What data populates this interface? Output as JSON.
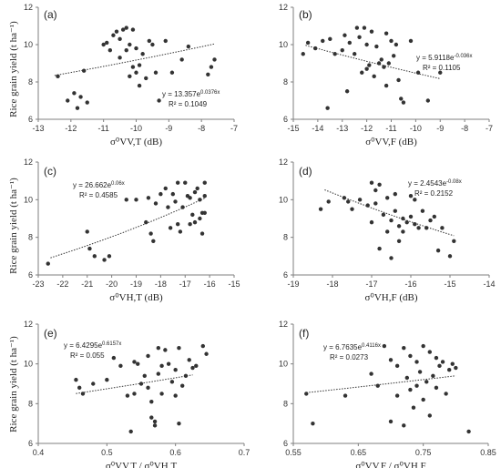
{
  "y_axis_label": "Rice grain yield (t ha⁻¹)",
  "chart_data": [
    {
      "type": "scatter",
      "panel_label": "(a)",
      "xlabel": "σ⁰VV,T (dB)",
      "ylabel": "Rice grain yield (t ha⁻¹)",
      "xlim": [
        -13,
        -7
      ],
      "ylim": [
        6,
        12
      ],
      "xticks": [
        -13,
        -12,
        -11,
        -10,
        -9,
        -8,
        -7
      ],
      "xtick_labels": [
        "-13",
        "-12",
        "-11",
        "-10",
        "-9",
        "-8",
        "-7"
      ],
      "yticks": [
        6,
        8,
        10,
        12
      ],
      "ytick_labels": [
        "6",
        "8",
        "10",
        "12"
      ],
      "equation": "y = 13.357e^0.0376x",
      "equation_parts": {
        "lhs": "y = ",
        "coef": "13.357e",
        "exp": "0.0376x"
      },
      "r2": "R² = 0.1049",
      "fit": {
        "model": "exp",
        "a": 13.357,
        "b": 0.0376,
        "xrange": [
          -12.5,
          -7.6
        ]
      },
      "points": [
        [
          -12.4,
          8.3
        ],
        [
          -12.1,
          7.0
        ],
        [
          -11.9,
          7.4
        ],
        [
          -11.8,
          6.6
        ],
        [
          -11.7,
          7.2
        ],
        [
          -11.6,
          8.6
        ],
        [
          -11.5,
          6.9
        ],
        [
          -11.0,
          10.0
        ],
        [
          -10.9,
          10.1
        ],
        [
          -10.8,
          9.7
        ],
        [
          -10.7,
          10.5
        ],
        [
          -10.6,
          10.7
        ],
        [
          -10.5,
          10.3
        ],
        [
          -10.5,
          9.3
        ],
        [
          -10.4,
          10.8
        ],
        [
          -10.3,
          10.9
        ],
        [
          -10.3,
          9.7
        ],
        [
          -10.2,
          8.3
        ],
        [
          -10.2,
          10.0
        ],
        [
          -10.1,
          10.8
        ],
        [
          -10.1,
          8.8
        ],
        [
          -10.0,
          9.8
        ],
        [
          -10.0,
          8.5
        ],
        [
          -9.9,
          8.9
        ],
        [
          -9.9,
          7.8
        ],
        [
          -9.8,
          9.5
        ],
        [
          -9.7,
          8.2
        ],
        [
          -9.6,
          10.2
        ],
        [
          -9.5,
          10.0
        ],
        [
          -9.4,
          8.5
        ],
        [
          -9.3,
          7.0
        ],
        [
          -9.1,
          10.2
        ],
        [
          -8.9,
          8.5
        ],
        [
          -8.6,
          9.2
        ],
        [
          -8.4,
          9.9
        ],
        [
          -7.8,
          8.4
        ],
        [
          -7.7,
          8.8
        ],
        [
          -7.6,
          9.2
        ]
      ]
    },
    {
      "type": "scatter",
      "panel_label": "(b)",
      "xlabel": "σ⁰VV,F (dB)",
      "ylabel": "",
      "xlim": [
        -15,
        -7
      ],
      "ylim": [
        6,
        12
      ],
      "xticks": [
        -15,
        -14,
        -13,
        -12,
        -11,
        -10,
        -9,
        -8,
        -7
      ],
      "xtick_labels": [
        "-15",
        "-14",
        "-13",
        "-12",
        "-11",
        "-10",
        "-9",
        "-8",
        "-7"
      ],
      "yticks": [
        6,
        8,
        10,
        12
      ],
      "ytick_labels": [
        "6",
        "8",
        "10",
        "12"
      ],
      "equation": "y = 5.9118e^-0.036x",
      "equation_parts": {
        "lhs": "y = ",
        "coef": "5.9118e",
        "exp": "-0.036x"
      },
      "r2": "R² = 0.1105",
      "fit": {
        "model": "exp",
        "a": 5.9118,
        "b": -0.036,
        "xrange": [
          -14.5,
          -9.0
        ]
      },
      "points": [
        [
          -14.6,
          9.5
        ],
        [
          -14.4,
          10.1
        ],
        [
          -14.1,
          9.8
        ],
        [
          -13.8,
          10.2
        ],
        [
          -13.6,
          6.6
        ],
        [
          -13.5,
          10.3
        ],
        [
          -13.3,
          9.5
        ],
        [
          -13.0,
          9.7
        ],
        [
          -12.9,
          10.5
        ],
        [
          -12.8,
          7.5
        ],
        [
          -12.7,
          10.1
        ],
        [
          -12.5,
          9.5
        ],
        [
          -12.4,
          10.9
        ],
        [
          -12.3,
          10.4
        ],
        [
          -12.2,
          8.5
        ],
        [
          -12.1,
          10.9
        ],
        [
          -12.0,
          10.0
        ],
        [
          -12.0,
          8.7
        ],
        [
          -11.9,
          8.9
        ],
        [
          -11.8,
          10.7
        ],
        [
          -11.7,
          8.3
        ],
        [
          -11.6,
          9.9
        ],
        [
          -11.5,
          9.0
        ],
        [
          -11.4,
          9.2
        ],
        [
          -11.3,
          8.8
        ],
        [
          -11.2,
          10.6
        ],
        [
          -11.2,
          7.8
        ],
        [
          -11.1,
          9.0
        ],
        [
          -11.0,
          10.2
        ],
        [
          -10.9,
          9.4
        ],
        [
          -10.8,
          10.0
        ],
        [
          -10.7,
          8.1
        ],
        [
          -10.6,
          7.1
        ],
        [
          -10.5,
          6.9
        ],
        [
          -10.2,
          10.2
        ],
        [
          -9.9,
          8.5
        ],
        [
          -9.5,
          7.0
        ],
        [
          -9.0,
          8.5
        ]
      ]
    },
    {
      "type": "scatter",
      "panel_label": "(c)",
      "xlabel": "σ⁰VH,T (dB)",
      "ylabel": "Rice grain yield (t ha⁻¹)",
      "xlim": [
        -23,
        -15
      ],
      "ylim": [
        6,
        12
      ],
      "xticks": [
        -23,
        -22,
        -21,
        -20,
        -19,
        -18,
        -17,
        -16,
        -15
      ],
      "xtick_labels": [
        "-23",
        "-22",
        "-21",
        "-20",
        "-19",
        "-18",
        "-17",
        "-16",
        "-15"
      ],
      "yticks": [
        6,
        8,
        10,
        12
      ],
      "ytick_labels": [
        "6",
        "8",
        "10",
        "12"
      ],
      "equation": "y = 26.662e^0.06x",
      "equation_parts": {
        "lhs": "y = ",
        "coef": "26.662e",
        "exp": "0.06x"
      },
      "r2": "R² = 0.4585",
      "fit": {
        "model": "exp",
        "a": 26.662,
        "b": 0.06,
        "xrange": [
          -22.5,
          -16.2
        ]
      },
      "points": [
        [
          -22.6,
          6.6
        ],
        [
          -21.0,
          8.3
        ],
        [
          -20.9,
          7.4
        ],
        [
          -20.7,
          7.0
        ],
        [
          -20.3,
          6.8
        ],
        [
          -20.1,
          7.0
        ],
        [
          -19.4,
          10.0
        ],
        [
          -19.0,
          10.0
        ],
        [
          -18.6,
          8.8
        ],
        [
          -18.5,
          10.1
        ],
        [
          -18.4,
          8.2
        ],
        [
          -18.3,
          7.8
        ],
        [
          -18.2,
          9.8
        ],
        [
          -18.0,
          10.3
        ],
        [
          -17.8,
          10.6
        ],
        [
          -17.7,
          9.6
        ],
        [
          -17.6,
          8.5
        ],
        [
          -17.5,
          10.3
        ],
        [
          -17.4,
          9.9
        ],
        [
          -17.3,
          8.7
        ],
        [
          -17.3,
          10.9
        ],
        [
          -17.2,
          8.3
        ],
        [
          -17.1,
          9.6
        ],
        [
          -17.0,
          10.9
        ],
        [
          -16.9,
          10.2
        ],
        [
          -16.8,
          8.7
        ],
        [
          -16.8,
          10.1
        ],
        [
          -16.7,
          9.2
        ],
        [
          -16.6,
          10.4
        ],
        [
          -16.6,
          8.8
        ],
        [
          -16.5,
          10.6
        ],
        [
          -16.4,
          9.0
        ],
        [
          -16.4,
          10.0
        ],
        [
          -16.3,
          9.3
        ],
        [
          -16.3,
          8.2
        ],
        [
          -16.2,
          10.9
        ],
        [
          -16.2,
          10.2
        ],
        [
          -16.2,
          9.3
        ]
      ]
    },
    {
      "type": "scatter",
      "panel_label": "(d)",
      "xlabel": "σ⁰VH,F (dB)",
      "ylabel": "",
      "xlim": [
        -19,
        -14
      ],
      "ylim": [
        6,
        12
      ],
      "xticks": [
        -19,
        -18,
        -17,
        -16,
        -15,
        -14
      ],
      "xtick_labels": [
        "-19",
        "-18",
        "-17",
        "-16",
        "-15",
        "-14"
      ],
      "yticks": [
        6,
        8,
        10,
        12
      ],
      "ytick_labels": [
        "6",
        "8",
        "10",
        "12"
      ],
      "equation": "y = 2.4543e^-0.08x",
      "equation_parts": {
        "lhs": "y = ",
        "coef": "2.4543e",
        "exp": "-0.08x"
      },
      "r2": "R² = 0.2152",
      "fit": {
        "model": "exp",
        "a": 2.4543,
        "b": -0.08,
        "xrange": [
          -18.2,
          -14.9
        ]
      },
      "points": [
        [
          -18.3,
          9.5
        ],
        [
          -18.1,
          9.9
        ],
        [
          -17.7,
          10.1
        ],
        [
          -17.6,
          9.9
        ],
        [
          -17.5,
          9.5
        ],
        [
          -17.3,
          10.0
        ],
        [
          -17.1,
          9.7
        ],
        [
          -17.0,
          10.9
        ],
        [
          -17.0,
          8.8
        ],
        [
          -16.9,
          10.5
        ],
        [
          -16.9,
          9.8
        ],
        [
          -16.8,
          7.4
        ],
        [
          -16.8,
          10.8
        ],
        [
          -16.7,
          9.2
        ],
        [
          -16.6,
          10.1
        ],
        [
          -16.6,
          8.3
        ],
        [
          -16.5,
          8.9
        ],
        [
          -16.5,
          6.9
        ],
        [
          -16.4,
          10.3
        ],
        [
          -16.4,
          9.4
        ],
        [
          -16.3,
          8.6
        ],
        [
          -16.3,
          7.8
        ],
        [
          -16.2,
          9.0
        ],
        [
          -16.2,
          8.3
        ],
        [
          -16.1,
          8.8
        ],
        [
          -16.0,
          10.2
        ],
        [
          -16.0,
          9.1
        ],
        [
          -15.9,
          8.7
        ],
        [
          -15.9,
          10.0
        ],
        [
          -15.8,
          8.5
        ],
        [
          -15.7,
          9.4
        ],
        [
          -15.6,
          8.5
        ],
        [
          -15.5,
          8.9
        ],
        [
          -15.4,
          9.1
        ],
        [
          -15.3,
          7.3
        ],
        [
          -15.2,
          8.5
        ],
        [
          -15.0,
          7.0
        ],
        [
          -14.9,
          7.8
        ]
      ]
    },
    {
      "type": "scatter",
      "panel_label": "(e)",
      "xlabel": "σ⁰VV,T / σ⁰VH,T",
      "ylabel": "Rice grain yield (t ha⁻¹)",
      "xlim": [
        0.4,
        0.7
      ],
      "ylim": [
        6,
        12
      ],
      "xticks": [
        0.4,
        0.5,
        0.6,
        0.7
      ],
      "xtick_labels": [
        "0.4",
        "0.5",
        "0.6",
        "0.7"
      ],
      "yticks": [
        6,
        8,
        10,
        12
      ],
      "ytick_labels": [
        "6",
        "8",
        "10",
        "12"
      ],
      "equation": "y = 6.4295e^0.6157x",
      "equation_parts": {
        "lhs": "y = ",
        "coef": "6.4295e",
        "exp": "0.6157x"
      },
      "r2": "R² = 0.055",
      "fit": {
        "model": "exp",
        "a": 6.4295,
        "b": 0.6157,
        "xrange": [
          0.455,
          0.625
        ]
      },
      "points": [
        [
          0.455,
          9.2
        ],
        [
          0.46,
          8.8
        ],
        [
          0.465,
          8.5
        ],
        [
          0.48,
          9.0
        ],
        [
          0.5,
          9.2
        ],
        [
          0.51,
          10.3
        ],
        [
          0.52,
          9.9
        ],
        [
          0.53,
          8.4
        ],
        [
          0.535,
          6.6
        ],
        [
          0.54,
          8.5
        ],
        [
          0.54,
          10.1
        ],
        [
          0.545,
          10.0
        ],
        [
          0.55,
          9.0
        ],
        [
          0.555,
          9.4
        ],
        [
          0.56,
          8.8
        ],
        [
          0.56,
          10.4
        ],
        [
          0.565,
          8.1
        ],
        [
          0.565,
          7.3
        ],
        [
          0.57,
          6.9
        ],
        [
          0.57,
          7.1
        ],
        [
          0.575,
          10.8
        ],
        [
          0.575,
          9.5
        ],
        [
          0.58,
          9.9
        ],
        [
          0.58,
          8.5
        ],
        [
          0.585,
          10.7
        ],
        [
          0.59,
          10.0
        ],
        [
          0.595,
          9.1
        ],
        [
          0.6,
          8.4
        ],
        [
          0.6,
          9.7
        ],
        [
          0.605,
          10.8
        ],
        [
          0.605,
          7.0
        ],
        [
          0.61,
          8.9
        ],
        [
          0.615,
          9.4
        ],
        [
          0.62,
          10.2
        ],
        [
          0.625,
          9.8
        ],
        [
          0.63,
          9.9
        ],
        [
          0.64,
          10.9
        ],
        [
          0.645,
          10.5
        ]
      ]
    },
    {
      "type": "scatter",
      "panel_label": "(f)",
      "xlabel": "σ⁰VV,F / σ⁰VH,F",
      "ylabel": "",
      "xlim": [
        0.55,
        0.85
      ],
      "ylim": [
        6,
        12
      ],
      "xticks": [
        0.55,
        0.65,
        0.75,
        0.85
      ],
      "xtick_labels": [
        "0.55",
        "0.65",
        "0.75",
        "0.85"
      ],
      "yticks": [
        6,
        8,
        10,
        12
      ],
      "ytick_labels": [
        "6",
        "8",
        "10",
        "12"
      ],
      "equation": "y = 6.7635e^0.4116x",
      "equation_parts": {
        "lhs": "y = ",
        "coef": "6.7635e",
        "exp": "0.4116x"
      },
      "r2": "R² = 0.0273",
      "fit": {
        "model": "exp",
        "a": 6.7635,
        "b": 0.4116,
        "xrange": [
          0.57,
          0.8
        ]
      },
      "points": [
        [
          0.57,
          8.5
        ],
        [
          0.58,
          7.0
        ],
        [
          0.63,
          8.4
        ],
        [
          0.67,
          9.5
        ],
        [
          0.68,
          8.9
        ],
        [
          0.69,
          10.9
        ],
        [
          0.7,
          10.2
        ],
        [
          0.7,
          7.1
        ],
        [
          0.71,
          9.9
        ],
        [
          0.71,
          8.4
        ],
        [
          0.72,
          10.8
        ],
        [
          0.72,
          6.9
        ],
        [
          0.725,
          9.3
        ],
        [
          0.73,
          10.4
        ],
        [
          0.73,
          8.7
        ],
        [
          0.735,
          7.8
        ],
        [
          0.74,
          10.1
        ],
        [
          0.74,
          8.9
        ],
        [
          0.745,
          9.6
        ],
        [
          0.75,
          10.9
        ],
        [
          0.75,
          8.2
        ],
        [
          0.755,
          9.1
        ],
        [
          0.76,
          10.6
        ],
        [
          0.76,
          7.4
        ],
        [
          0.765,
          9.4
        ],
        [
          0.77,
          10.3
        ],
        [
          0.77,
          8.8
        ],
        [
          0.775,
          9.9
        ],
        [
          0.78,
          10.1
        ],
        [
          0.785,
          8.5
        ],
        [
          0.79,
          9.7
        ],
        [
          0.795,
          10.0
        ],
        [
          0.8,
          9.8
        ],
        [
          0.82,
          6.6
        ]
      ]
    }
  ]
}
